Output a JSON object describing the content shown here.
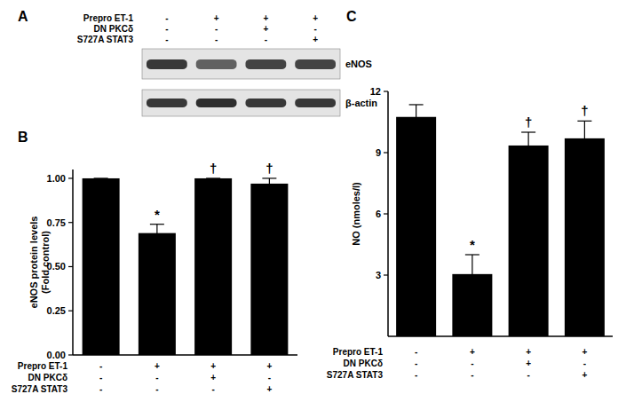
{
  "blot": {
    "title": "A",
    "conditions": [
      {
        "label": "Prepro ET-1",
        "marks": [
          "-",
          "+",
          "+",
          "+"
        ]
      },
      {
        "label": "DN PKCδ",
        "marks": [
          "-",
          "-",
          "+",
          "-"
        ]
      },
      {
        "label": "S727A STAT3",
        "marks": [
          "-",
          "-",
          "-",
          "+"
        ]
      }
    ],
    "bands": [
      "eNOS",
      "β-actin"
    ]
  },
  "chart_data": [
    {
      "type": "bar",
      "title": "B",
      "ylabel": "eNOS protein levels\n(Fold control)",
      "values": [
        1.0,
        0.69,
        1.0,
        0.97
      ],
      "errors": [
        0,
        0.05,
        0,
        0.03
      ],
      "significance": [
        null,
        "*",
        "†",
        "†"
      ],
      "conditions": [
        {
          "label": "Prepro ET-1",
          "marks": [
            "-",
            "+",
            "+",
            "+"
          ]
        },
        {
          "label": "DN PKCδ",
          "marks": [
            "-",
            "-",
            "+",
            "-"
          ]
        },
        {
          "label": "S727A STAT3",
          "marks": [
            "-",
            "-",
            "-",
            "+"
          ]
        }
      ],
      "color": "#000000",
      "ylim": [
        0,
        1.05
      ],
      "yticks": [
        {
          "value": 0,
          "label": "0.00"
        },
        {
          "value": 0.25,
          "label": "0.25"
        },
        {
          "value": 0.5,
          "label": "0.50"
        },
        {
          "value": 0.75,
          "label": "0.75"
        },
        {
          "value": 1,
          "label": "1.00"
        }
      ]
    },
    {
      "type": "bar",
      "title": "C",
      "ylabel": "NO (nmoles/l)",
      "values": [
        10.75,
        3.05,
        9.35,
        9.7
      ],
      "errors": [
        0.6,
        0.95,
        0.65,
        0.85
      ],
      "significance": [
        null,
        "*",
        "†",
        "†"
      ],
      "conditions": [
        {
          "label": "Prepro ET-1",
          "marks": [
            "-",
            "+",
            "+",
            "+"
          ]
        },
        {
          "label": "DN PKCδ",
          "marks": [
            "-",
            "-",
            "+",
            "-"
          ]
        },
        {
          "label": "S727A STAT3",
          "marks": [
            "-",
            "-",
            "-",
            "+"
          ]
        }
      ],
      "color": "#000000",
      "ylim": [
        0,
        12
      ],
      "yticks": [
        3,
        6,
        9,
        12
      ]
    }
  ]
}
